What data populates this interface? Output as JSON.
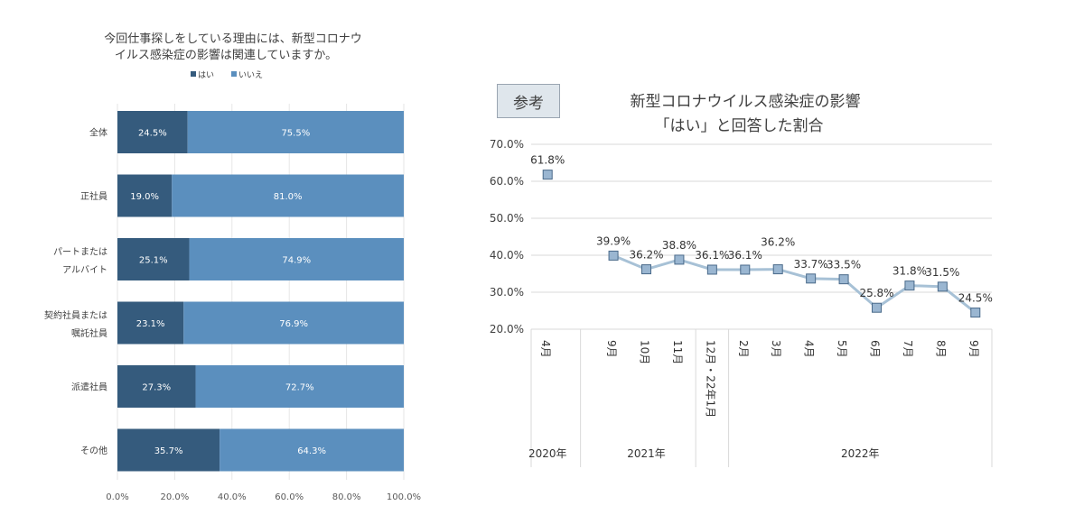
{
  "left": {
    "title_line1": "今回仕事探しをしている理由には、新型コロナウ",
    "title_line2": "イルス感染症の影響は関連していますか。",
    "legend": [
      "はい",
      "いいえ"
    ],
    "colors": {
      "yes": "#355b7d",
      "no": "#5b8fbe"
    }
  },
  "right": {
    "ref_label": "参考",
    "title_line1": "新型コロナウイルス感染症の影響",
    "title_line2": "「はい」と回答した割合",
    "colors": {
      "line": "#a7c1d6",
      "marker": "#9ab6d1",
      "marker_border": "#4a6a8a"
    }
  },
  "chart_data": [
    {
      "type": "bar",
      "orientation": "horizontal-stacked",
      "title": "今回仕事探しをしている理由には、新型コロナウイルス感染症の影響は関連していますか。",
      "categories": [
        [
          "全体"
        ],
        [
          "正社員"
        ],
        [
          "パートまたは",
          "アルバイト"
        ],
        [
          "契約社員または",
          "嘱託社員"
        ],
        [
          "派遣社員"
        ],
        [
          "その他"
        ]
      ],
      "series": [
        {
          "name": "はい",
          "values": [
            24.5,
            19.0,
            25.1,
            23.1,
            27.3,
            35.7
          ],
          "labels": [
            "24.5%",
            "19.0%",
            "25.1%",
            "23.1%",
            "27.3%",
            "35.7%"
          ]
        },
        {
          "name": "いいえ",
          "values": [
            75.5,
            81.0,
            74.9,
            76.9,
            72.7,
            64.3
          ],
          "labels": [
            "75.5%",
            "81.0%",
            "74.9%",
            "76.9%",
            "72.7%",
            "64.3%"
          ]
        }
      ],
      "xlim": [
        0,
        100
      ],
      "xticks": [
        "0.0%",
        "20.0%",
        "40.0%",
        "60.0%",
        "80.0%",
        "100.0%"
      ],
      "legend_position": "top"
    },
    {
      "type": "line",
      "title": "新型コロナウイルス感染症の影響「はい」と回答した割合",
      "categories": [
        "4月",
        "9月",
        "10月",
        "11月",
        "12月・22年1月",
        "2月",
        "3月",
        "4月",
        "5月",
        "6月",
        "7月",
        "8月",
        "9月"
      ],
      "years": [
        {
          "label": "2020年",
          "span": [
            0,
            0
          ]
        },
        {
          "label": "2021年",
          "span": [
            1,
            3
          ]
        },
        {
          "label": "2022年",
          "span": [
            5,
            12
          ]
        }
      ],
      "values": [
        61.8,
        39.9,
        36.2,
        38.8,
        36.1,
        36.1,
        36.2,
        33.7,
        33.5,
        25.8,
        31.8,
        31.5,
        24.5
      ],
      "value_labels": [
        "61.8%",
        "39.9%",
        "36.2%",
        "38.8%",
        "36.1%",
        "36.1%",
        "36.2%",
        "33.7%",
        "33.5%",
        "25.8%",
        "31.8%",
        "31.5%",
        "24.5%"
      ],
      "broken_after_first": true,
      "ylim": [
        20,
        70
      ],
      "yticks": [
        "20.0%",
        "30.0%",
        "40.0%",
        "50.0%",
        "60.0%",
        "70.0%"
      ],
      "grid": true
    }
  ]
}
